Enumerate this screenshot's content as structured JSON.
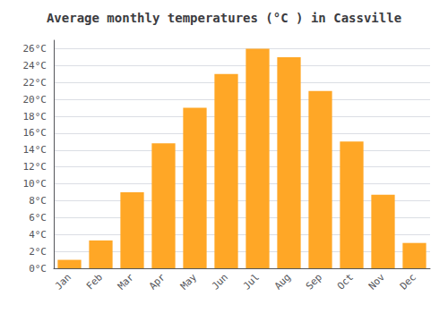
{
  "chart_data": {
    "type": "bar",
    "title": "Average monthly temperatures (°C ) in Cassville",
    "categories": [
      "Jan",
      "Feb",
      "Mar",
      "Apr",
      "May",
      "Jun",
      "Jul",
      "Aug",
      "Sep",
      "Oct",
      "Nov",
      "Dec"
    ],
    "values": [
      1.0,
      3.3,
      9.0,
      14.8,
      19.0,
      23.0,
      26.0,
      25.0,
      21.0,
      15.0,
      8.7,
      3.0
    ],
    "color": "#FFA726",
    "ylim": [
      0,
      27
    ],
    "yticks": [
      {
        "value": 0,
        "label": "0°C"
      },
      {
        "value": 2,
        "label": "2°C"
      },
      {
        "value": 4,
        "label": "4°C"
      },
      {
        "value": 6,
        "label": "6°C"
      },
      {
        "value": 8,
        "label": "8°C"
      },
      {
        "value": 10,
        "label": "10°C"
      },
      {
        "value": 12,
        "label": "12°C"
      },
      {
        "value": 14,
        "label": "14°C"
      },
      {
        "value": 16,
        "label": "16°C"
      },
      {
        "value": 18,
        "label": "18°C"
      },
      {
        "value": 20,
        "label": "20°C"
      },
      {
        "value": 22,
        "label": "22°C"
      },
      {
        "value": 24,
        "label": "24°C"
      },
      {
        "value": 26,
        "label": "26°C"
      }
    ],
    "grid": true
  }
}
